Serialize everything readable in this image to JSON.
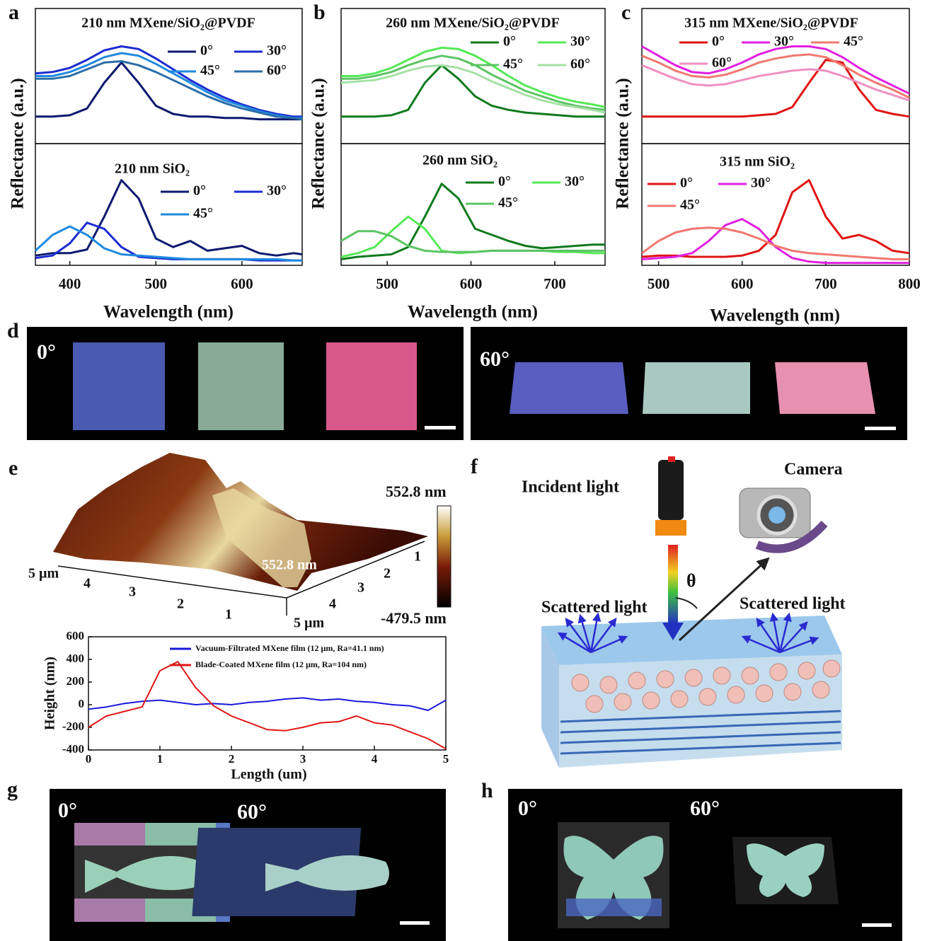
{
  "chart_data": [
    {
      "type": "line",
      "title": "210 nm MXene/SiO₂@PVDF",
      "ylabel": "Reflectance (a.u.)",
      "x": [
        360,
        380,
        400,
        420,
        440,
        460,
        480,
        500,
        520,
        540,
        560,
        580,
        600,
        620,
        640,
        660,
        670
      ],
      "xlim": [
        360,
        670
      ],
      "ylim": [
        0,
        1
      ],
      "series": [
        {
          "name": "0°",
          "color": "#0d1a6e",
          "values": [
            0.2,
            0.2,
            0.21,
            0.26,
            0.45,
            0.6,
            0.45,
            0.28,
            0.22,
            0.2,
            0.2,
            0.19,
            0.19,
            0.18,
            0.18,
            0.18,
            0.18
          ]
        },
        {
          "name": "30°",
          "color": "#1c2ccf",
          "values": [
            0.52,
            0.53,
            0.56,
            0.62,
            0.69,
            0.72,
            0.7,
            0.63,
            0.55,
            0.47,
            0.4,
            0.34,
            0.29,
            0.25,
            0.22,
            0.2,
            0.2
          ]
        },
        {
          "name": "45°",
          "color": "#1f8ae0",
          "values": [
            0.5,
            0.5,
            0.53,
            0.58,
            0.64,
            0.67,
            0.65,
            0.59,
            0.52,
            0.45,
            0.38,
            0.32,
            0.28,
            0.24,
            0.21,
            0.19,
            0.19
          ]
        },
        {
          "name": "60°",
          "color": "#2a6ea8",
          "values": [
            0.48,
            0.48,
            0.5,
            0.55,
            0.6,
            0.61,
            0.58,
            0.53,
            0.47,
            0.41,
            0.35,
            0.3,
            0.26,
            0.23,
            0.2,
            0.19,
            0.18
          ]
        }
      ]
    },
    {
      "type": "line",
      "title": "210 nm SiO₂",
      "xlabel": "Wavelength (nm)",
      "x": [
        360,
        380,
        400,
        420,
        440,
        460,
        480,
        500,
        520,
        540,
        560,
        580,
        600,
        620,
        640,
        660,
        670
      ],
      "xlim": [
        360,
        670
      ],
      "ylim": [
        0,
        1
      ],
      "xticks": [
        400,
        500,
        600
      ],
      "series": [
        {
          "name": "0°",
          "color": "#0d1a6e",
          "values": [
            0.08,
            0.1,
            0.1,
            0.13,
            0.4,
            0.7,
            0.55,
            0.22,
            0.15,
            0.2,
            0.12,
            0.14,
            0.16,
            0.1,
            0.08,
            0.1,
            0.09
          ]
        },
        {
          "name": "30°",
          "color": "#1c2ccf",
          "values": [
            0.06,
            0.08,
            0.18,
            0.35,
            0.3,
            0.15,
            0.07,
            0.06,
            0.05,
            0.05,
            0.05,
            0.05,
            0.05,
            0.04,
            0.04,
            0.04,
            0.04
          ]
        },
        {
          "name": "45°",
          "color": "#1f8ae0",
          "values": [
            0.12,
            0.25,
            0.32,
            0.25,
            0.14,
            0.09,
            0.08,
            0.07,
            0.06,
            0.05,
            0.05,
            0.05,
            0.05,
            0.05,
            0.05,
            0.04,
            0.04
          ]
        }
      ]
    },
    {
      "type": "line",
      "title": "260 nm MXene/SiO₂@PVDF",
      "ylabel": "Reflectance (a.u.)",
      "x": [
        445,
        465,
        485,
        505,
        525,
        545,
        565,
        585,
        605,
        625,
        645,
        665,
        685,
        705,
        725,
        745,
        760
      ],
      "xlim": [
        445,
        760
      ],
      "ylim": [
        0,
        1
      ],
      "series": [
        {
          "name": "0°",
          "color": "#0f7a1c",
          "values": [
            0.2,
            0.2,
            0.2,
            0.21,
            0.25,
            0.45,
            0.58,
            0.48,
            0.35,
            0.28,
            0.25,
            0.23,
            0.22,
            0.21,
            0.2,
            0.2,
            0.2
          ]
        },
        {
          "name": "30°",
          "color": "#55e855",
          "values": [
            0.5,
            0.5,
            0.52,
            0.56,
            0.62,
            0.68,
            0.71,
            0.7,
            0.65,
            0.58,
            0.5,
            0.43,
            0.38,
            0.34,
            0.31,
            0.29,
            0.27
          ]
        },
        {
          "name": "45°",
          "color": "#5cc465",
          "values": [
            0.48,
            0.48,
            0.5,
            0.53,
            0.58,
            0.62,
            0.65,
            0.63,
            0.58,
            0.51,
            0.45,
            0.39,
            0.35,
            0.31,
            0.28,
            0.26,
            0.25
          ]
        },
        {
          "name": "60°",
          "color": "#a6e0a6",
          "values": [
            0.45,
            0.46,
            0.47,
            0.5,
            0.54,
            0.57,
            0.58,
            0.56,
            0.52,
            0.46,
            0.41,
            0.36,
            0.32,
            0.29,
            0.27,
            0.25,
            0.23
          ]
        }
      ]
    },
    {
      "type": "line",
      "title": "260 nm SiO₂",
      "xlabel": "Wavelength (nm)",
      "x": [
        445,
        465,
        485,
        505,
        525,
        545,
        565,
        585,
        605,
        625,
        645,
        665,
        685,
        705,
        725,
        745,
        760
      ],
      "xlim": [
        445,
        760
      ],
      "ylim": [
        0,
        1
      ],
      "xticks": [
        500,
        600,
        700
      ],
      "series": [
        {
          "name": "0°",
          "color": "#0f7a1c",
          "values": [
            0.05,
            0.07,
            0.08,
            0.09,
            0.15,
            0.4,
            0.67,
            0.55,
            0.3,
            0.25,
            0.2,
            0.16,
            0.14,
            0.15,
            0.16,
            0.17,
            0.17
          ]
        },
        {
          "name": "30°",
          "color": "#55e855",
          "values": [
            0.07,
            0.1,
            0.15,
            0.28,
            0.4,
            0.3,
            0.12,
            0.1,
            0.11,
            0.12,
            0.12,
            0.12,
            0.12,
            0.11,
            0.11,
            0.1,
            0.1
          ]
        },
        {
          "name": "45°",
          "color": "#5cc465",
          "values": [
            0.2,
            0.28,
            0.28,
            0.24,
            0.16,
            0.12,
            0.11,
            0.11,
            0.11,
            0.12,
            0.12,
            0.12,
            0.12,
            0.12,
            0.12,
            0.12,
            0.12
          ]
        }
      ]
    },
    {
      "type": "line",
      "title": "315 nm MXene/SiO₂@PVDF",
      "ylabel": "Reflectance (a.u.)",
      "x": [
        480,
        500,
        520,
        540,
        560,
        580,
        600,
        620,
        640,
        660,
        680,
        700,
        720,
        740,
        760,
        780,
        800
      ],
      "xlim": [
        480,
        800
      ],
      "ylim": [
        0,
        1
      ],
      "series": [
        {
          "name": "0°",
          "color": "#e01414",
          "values": [
            0.2,
            0.2,
            0.2,
            0.2,
            0.2,
            0.2,
            0.2,
            0.21,
            0.22,
            0.27,
            0.45,
            0.62,
            0.6,
            0.4,
            0.25,
            0.22,
            0.2
          ]
        },
        {
          "name": "30°",
          "color": "#e020e0",
          "values": [
            0.72,
            0.65,
            0.58,
            0.53,
            0.52,
            0.55,
            0.6,
            0.66,
            0.7,
            0.72,
            0.72,
            0.7,
            0.64,
            0.56,
            0.49,
            0.43,
            0.37
          ]
        },
        {
          "name": "45°",
          "color": "#f07870",
          "values": [
            0.65,
            0.6,
            0.54,
            0.5,
            0.49,
            0.51,
            0.55,
            0.6,
            0.63,
            0.65,
            0.66,
            0.64,
            0.58,
            0.51,
            0.45,
            0.4,
            0.34
          ]
        },
        {
          "name": "60°",
          "color": "#f090c0",
          "values": [
            0.58,
            0.53,
            0.48,
            0.44,
            0.43,
            0.44,
            0.47,
            0.5,
            0.52,
            0.54,
            0.55,
            0.54,
            0.5,
            0.45,
            0.4,
            0.36,
            0.32
          ]
        }
      ]
    },
    {
      "type": "line",
      "title": "315 nm SiO₂",
      "xlabel": "Wavelength (nm)",
      "x": [
        480,
        500,
        520,
        540,
        560,
        580,
        600,
        620,
        640,
        660,
        680,
        700,
        720,
        740,
        760,
        780,
        800
      ],
      "xlim": [
        480,
        800
      ],
      "ylim": [
        0,
        1
      ],
      "xticks": [
        500,
        600,
        700,
        800
      ],
      "series": [
        {
          "name": "0°",
          "color": "#e01414",
          "values": [
            0.07,
            0.08,
            0.08,
            0.07,
            0.07,
            0.07,
            0.08,
            0.12,
            0.25,
            0.6,
            0.7,
            0.4,
            0.22,
            0.25,
            0.2,
            0.12,
            0.1
          ]
        },
        {
          "name": "30°",
          "color": "#e020e0",
          "values": [
            0.05,
            0.06,
            0.07,
            0.1,
            0.2,
            0.33,
            0.38,
            0.3,
            0.15,
            0.06,
            0.03,
            0.02,
            0.02,
            0.02,
            0.02,
            0.02,
            0.02
          ]
        },
        {
          "name": "45°",
          "color": "#f07870",
          "values": [
            0.1,
            0.2,
            0.27,
            0.3,
            0.31,
            0.3,
            0.27,
            0.22,
            0.16,
            0.12,
            0.1,
            0.09,
            0.08,
            0.07,
            0.06,
            0.05,
            0.05
          ]
        }
      ]
    },
    {
      "type": "line",
      "xlabel": "Length (um)",
      "ylabel": "Height (nm)",
      "x": [
        0,
        0.25,
        0.5,
        0.75,
        1,
        1.25,
        1.5,
        1.75,
        2,
        2.25,
        2.5,
        2.75,
        3,
        3.25,
        3.5,
        3.75,
        4,
        4.25,
        4.5,
        4.75,
        5
      ],
      "xlim": [
        0,
        5
      ],
      "ylim": [
        -400,
        600
      ],
      "xticks": [
        0,
        1,
        2,
        3,
        4,
        5
      ],
      "yticks": [
        -400,
        -200,
        0,
        200,
        400,
        600
      ],
      "series": [
        {
          "name": "Vacuum-Filtrated MXene film (12 µm, Ra=41.1 nm)",
          "color": "#1a1adc",
          "values": [
            -40,
            -20,
            10,
            30,
            40,
            20,
            0,
            10,
            0,
            20,
            30,
            50,
            60,
            40,
            50,
            30,
            20,
            0,
            -10,
            -50,
            40
          ]
        },
        {
          "name": "Blade-Coated MXene film (12 µm, Ra=104 nm)",
          "color": "#e01818",
          "values": [
            -200,
            -100,
            -60,
            -20,
            300,
            380,
            150,
            -10,
            -100,
            -160,
            -220,
            -230,
            -200,
            -160,
            -150,
            -100,
            -160,
            -180,
            -240,
            -300,
            -390
          ]
        }
      ]
    }
  ],
  "figure": {
    "panel_labels": [
      "a",
      "b",
      "c",
      "d",
      "e",
      "f",
      "g",
      "h"
    ],
    "d_angles": [
      "0°",
      "60°"
    ],
    "afm": {
      "axis_left": [
        "5 µm",
        "4",
        "3",
        "2",
        "1"
      ],
      "axis_right": [
        "1",
        "2",
        "3",
        "4",
        "5 µm"
      ],
      "overlay": "552.8 nm",
      "colorbar_max": "552.8 nm",
      "colorbar_min": "-479.5 nm"
    },
    "diagram": {
      "incident": "Incident light",
      "camera": "Camera",
      "theta": "θ",
      "scattered_left": "Scattered light",
      "scattered_right": "Scattered light"
    },
    "g_angles": [
      "0°",
      "60°"
    ],
    "h_angles": [
      "0°",
      "60°"
    ]
  }
}
